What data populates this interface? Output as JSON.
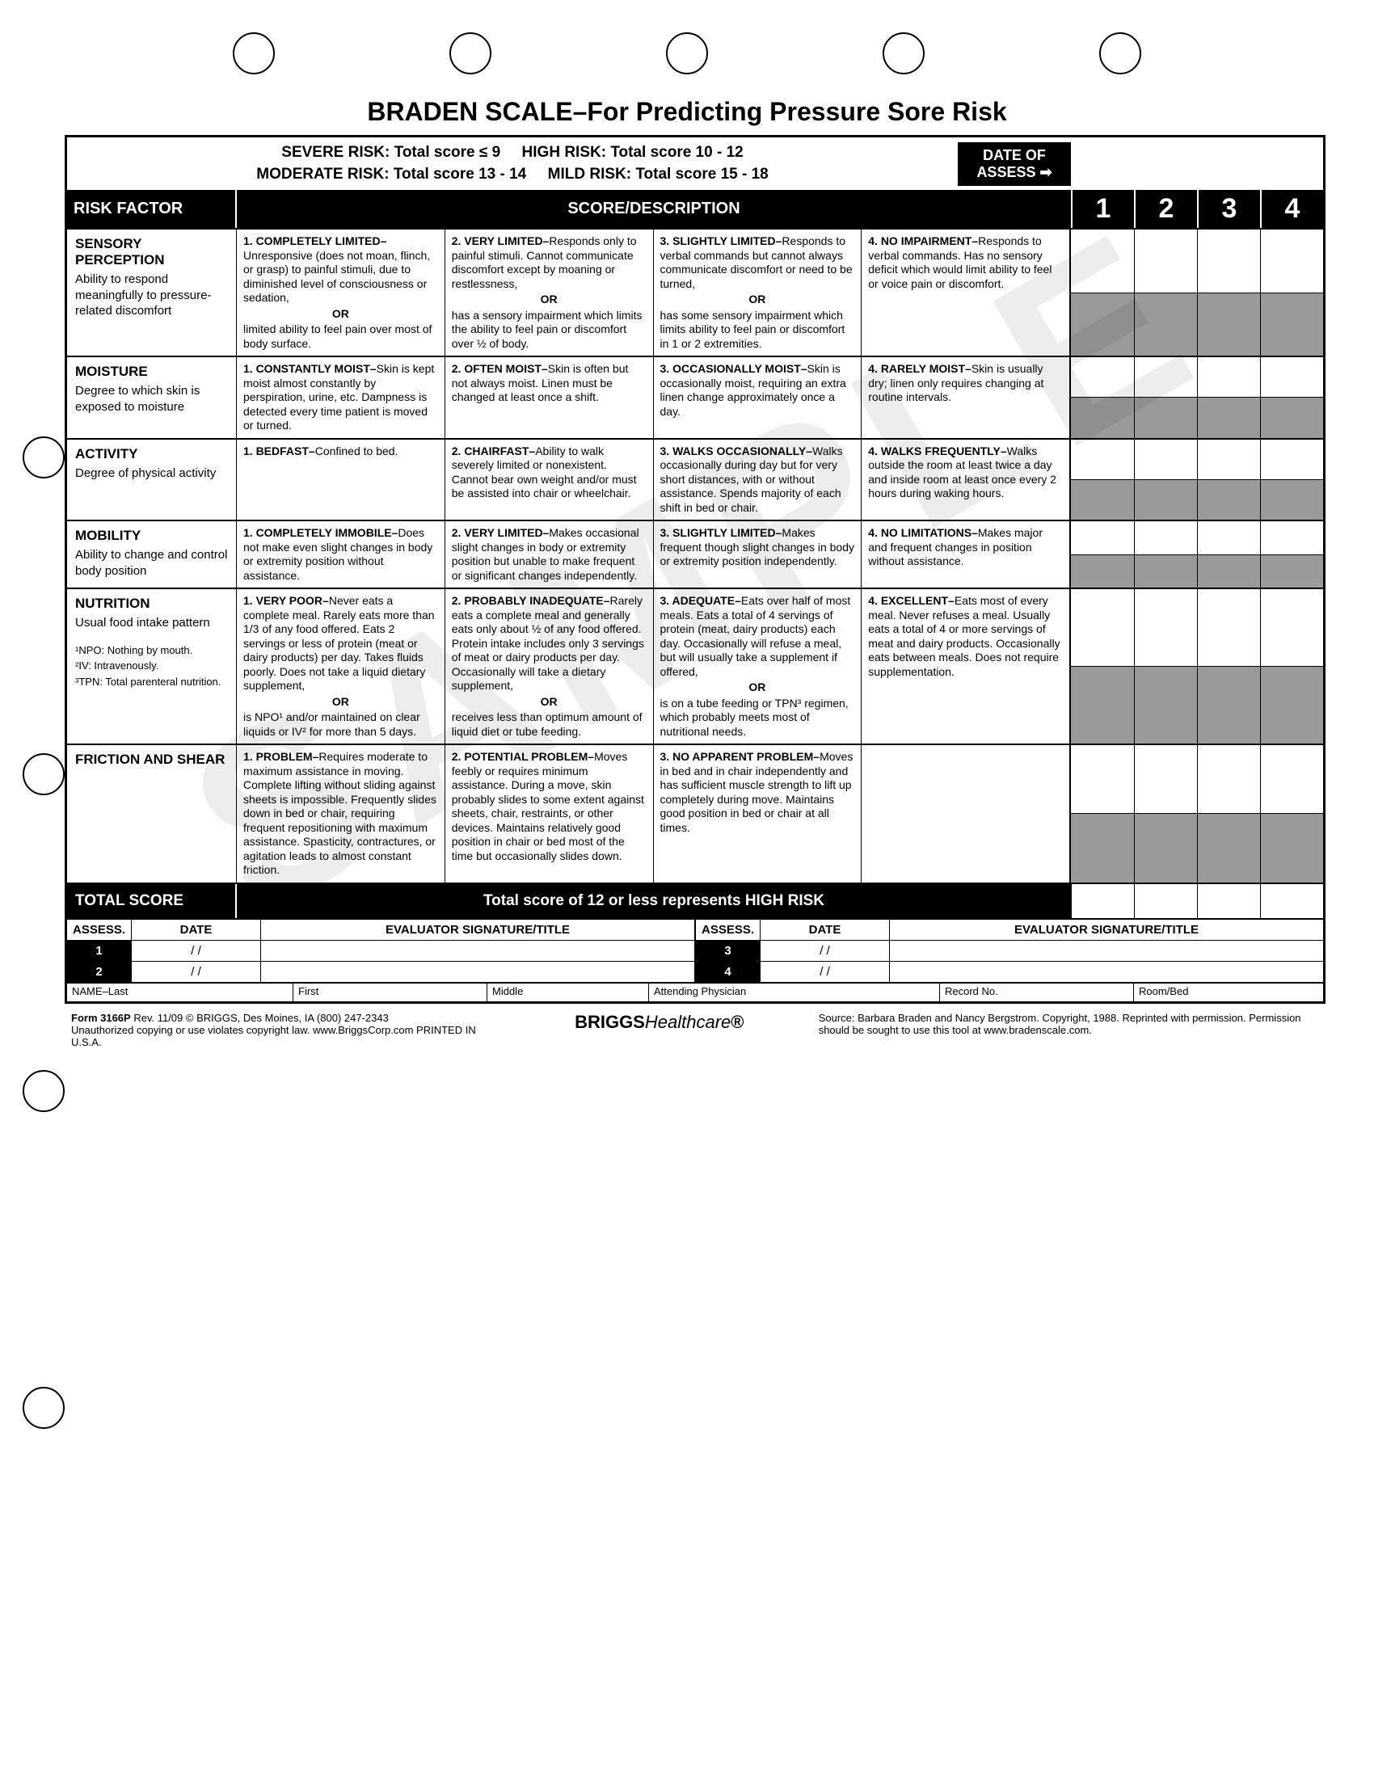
{
  "title": "BRADEN SCALE–For Predicting Pressure Sore Risk",
  "risk_legend": {
    "severe": "SEVERE RISK: Total score ≤ 9",
    "high": "HIGH RISK: Total score 10 - 12",
    "moderate": "MODERATE RISK: Total score 13 - 14",
    "mild": "MILD RISK: Total score 15 - 18"
  },
  "date_of_assess": "DATE OF ASSESS ➡",
  "hdr": {
    "risk_factor": "RISK FACTOR",
    "score_desc": "SCORE/DESCRIPTION",
    "cols": [
      "1",
      "2",
      "3",
      "4"
    ]
  },
  "factors": [
    {
      "name": "SENSORY PERCEPTION",
      "desc": "Ability to respond meaningfully to pressure-related discomfort",
      "footnotes": "",
      "scores": [
        {
          "t": "1. COMPLETELY LIMITED–",
          "b": "Unresponsive (does not moan, flinch, or grasp) to painful stimuli, due to diminished level of consciousness or sedation,",
          "or": "OR",
          "b2": "limited ability to feel pain over most of body surface."
        },
        {
          "t": "2. VERY LIMITED–",
          "b": "Responds only to painful stimuli. Cannot communicate discomfort except by moaning or restlessness,",
          "or": "OR",
          "b2": "has a sensory impairment which limits the ability to feel pain or discomfort over ½ of body."
        },
        {
          "t": "3. SLIGHTLY LIMITED–",
          "b": "Responds to verbal commands but cannot always communicate discomfort or need to be turned,",
          "or": "OR",
          "b2": "has some sensory impairment which limits ability to feel pain or discomfort in 1 or 2 extremities."
        },
        {
          "t": "4. NO IMPAIRMENT–",
          "b": "Responds to verbal commands. Has no sensory deficit which would limit ability to feel or voice pain or discomfort.",
          "or": "",
          "b2": ""
        }
      ],
      "cells": 4
    },
    {
      "name": "MOISTURE",
      "desc": "Degree to which skin is exposed to moisture",
      "footnotes": "",
      "scores": [
        {
          "t": "1. CONSTANTLY MOIST–",
          "b": "Skin is kept moist almost constantly by perspiration, urine, etc. Dampness is detected every time patient is moved or turned.",
          "or": "",
          "b2": ""
        },
        {
          "t": "2. OFTEN MOIST–",
          "b": "Skin is often but not always moist. Linen must be changed at least once a shift.",
          "or": "",
          "b2": ""
        },
        {
          "t": "3. OCCASIONALLY MOIST–",
          "b": "Skin is occasionally moist, requiring an extra linen change approximately once a day.",
          "or": "",
          "b2": ""
        },
        {
          "t": "4. RARELY MOIST–",
          "b": "Skin is usually dry; linen only requires changing at routine intervals.",
          "or": "",
          "b2": ""
        }
      ],
      "cells": 4
    },
    {
      "name": "ACTIVITY",
      "desc": "Degree of physical activity",
      "footnotes": "",
      "scores": [
        {
          "t": "1. BEDFAST–",
          "b": "Confined to bed.",
          "or": "",
          "b2": ""
        },
        {
          "t": "2. CHAIRFAST–",
          "b": "Ability to walk severely limited or nonexistent. Cannot bear own weight and/or must be assisted into chair or wheelchair.",
          "or": "",
          "b2": ""
        },
        {
          "t": "3. WALKS OCCASIONALLY–",
          "b": "Walks occasionally during day but for very short distances, with or without assistance. Spends majority of each shift in bed or chair.",
          "or": "",
          "b2": ""
        },
        {
          "t": "4. WALKS FREQUENTLY–",
          "b": "Walks outside the room at least twice a day and inside room at least once every 2 hours during waking hours.",
          "or": "",
          "b2": ""
        }
      ],
      "cells": 4
    },
    {
      "name": "MOBILITY",
      "desc": "Ability to change and control body position",
      "footnotes": "",
      "scores": [
        {
          "t": "1. COMPLETELY IMMOBILE–",
          "b": "Does not make even slight changes in body or extremity position without assistance.",
          "or": "",
          "b2": ""
        },
        {
          "t": "2. VERY LIMITED–",
          "b": "Makes occasional slight changes in body or extremity position but unable to make frequent or significant changes independently.",
          "or": "",
          "b2": ""
        },
        {
          "t": "3. SLIGHTLY LIMITED–",
          "b": "Makes frequent though slight changes in body or extremity position independently.",
          "or": "",
          "b2": ""
        },
        {
          "t": "4. NO LIMITATIONS–",
          "b": "Makes major and frequent changes in position without assistance.",
          "or": "",
          "b2": ""
        }
      ],
      "cells": 4
    },
    {
      "name": "NUTRITION",
      "desc": "Usual food intake pattern",
      "footnotes": "¹NPO: Nothing by mouth.\n²IV: Intravenously.\n³TPN: Total parenteral nutrition.",
      "scores": [
        {
          "t": "1. VERY POOR–",
          "b": "Never eats a complete meal. Rarely eats more than 1/3 of any food offered. Eats 2 servings or less of protein (meat or dairy products) per day. Takes fluids poorly. Does not take a liquid dietary supplement,",
          "or": "OR",
          "b2": "is NPO¹ and/or maintained on clear liquids or IV² for more than 5 days."
        },
        {
          "t": "2. PROBABLY INADEQUATE–",
          "b": "Rarely eats a complete meal and generally eats only about ½ of any food offered. Protein intake includes only 3 servings of meat or dairy products per day. Occasionally will take a dietary supplement,",
          "or": "OR",
          "b2": "receives less than optimum amount of liquid diet or tube feeding."
        },
        {
          "t": "3. ADEQUATE–",
          "b": "Eats over half of most meals. Eats a total of 4 servings of protein (meat, dairy products) each day. Occasionally will refuse a meal, but will usually take a supplement if offered,",
          "or": "OR",
          "b2": "is on a tube feeding or TPN³ regimen, which probably meets most of nutritional needs."
        },
        {
          "t": "4. EXCELLENT–",
          "b": "Eats most of every meal. Never refuses a meal. Usually eats a total of 4 or more servings of meat and dairy products. Occasionally eats between meals. Does not require supplementation.",
          "or": "",
          "b2": ""
        }
      ],
      "cells": 4
    },
    {
      "name": "FRICTION AND SHEAR",
      "desc": "",
      "footnotes": "",
      "scores": [
        {
          "t": "1. PROBLEM–",
          "b": "Requires moderate to maximum assistance in moving. Complete lifting without sliding against sheets is impossible. Frequently slides down in bed or chair, requiring frequent repositioning with maximum assistance. Spasticity, contractures, or agitation leads to almost constant friction.",
          "or": "",
          "b2": ""
        },
        {
          "t": "2. POTENTIAL PROBLEM–",
          "b": "Moves feebly or requires minimum assistance. During a move, skin probably slides to some extent against sheets, chair, restraints, or other devices. Maintains relatively good position in chair or bed most of the time but occasionally slides down.",
          "or": "",
          "b2": ""
        },
        {
          "t": "3. NO APPARENT PROBLEM–",
          "b": "Moves in bed and in chair independently and has sufficient muscle strength to lift up completely during move. Maintains good position in bed or chair at all times.",
          "or": "",
          "b2": ""
        }
      ],
      "cells": 3
    }
  ],
  "total": {
    "label": "TOTAL SCORE",
    "text": "Total score of 12 or less represents HIGH RISK"
  },
  "sig": {
    "assess": "ASSESS.",
    "date": "DATE",
    "eval": "EVALUATOR SIGNATURE/TITLE",
    "rows_left": [
      "1",
      "2"
    ],
    "rows_right": [
      "3",
      "4"
    ],
    "date_blank": "/        /"
  },
  "name_row": {
    "name_last": "NAME–Last",
    "first": "First",
    "middle": "Middle",
    "attending": "Attending Physician",
    "record": "Record No.",
    "room": "Room/Bed"
  },
  "footer": {
    "form": "Form 3166P",
    "rev": "Rev. 11/09  © BRIGGS, Des Moines, IA  (800) 247-2343",
    "copy": "Unauthorized copying or use violates copyright law.  www.BriggsCorp.com  PRINTED IN U.S.A.",
    "brand1": "BRIGGS",
    "brand2": "Healthcare",
    "source": "Source:  Barbara Braden and Nancy Bergstrom. Copyright, 1988. Reprinted with permission. Permission should be sought to use this tool at www.bradenscale.com."
  },
  "watermark": "SAMPLE",
  "colors": {
    "black": "#000000",
    "white": "#ffffff",
    "shaded": "#9a9a9a"
  }
}
